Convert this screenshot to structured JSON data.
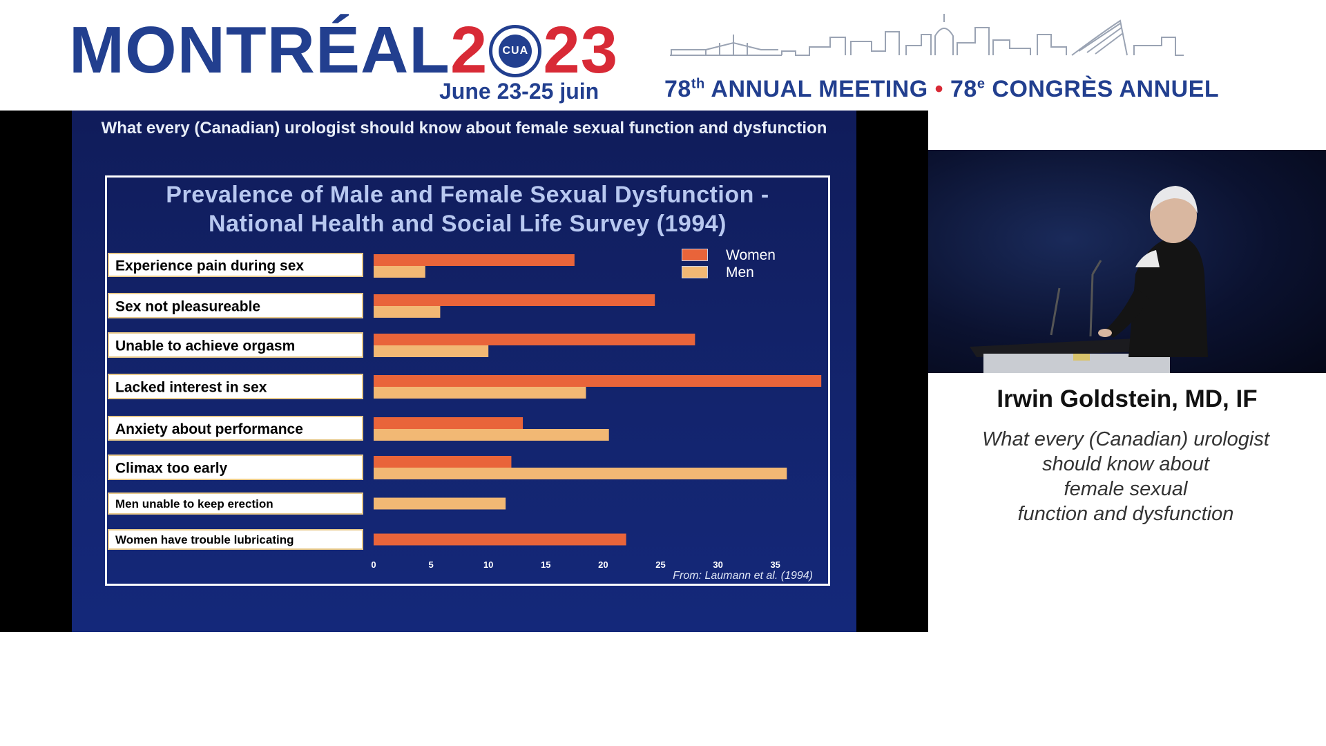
{
  "header": {
    "city": "MONTRÉAL",
    "year_left": "2",
    "seal_text": "CUA",
    "year_right": "23",
    "dates": "June 23-25 juin",
    "meeting_en": "ANNUAL MEETING",
    "meeting_num_en": "78",
    "meeting_sup_en": "th",
    "meeting_num_fr": "78",
    "meeting_sup_fr": "e",
    "meeting_fr": "CONGRÈS ANNUEL",
    "separator": "•"
  },
  "slide": {
    "topbar": "What every (Canadian) urologist should know about female sexual function and dysfunction"
  },
  "chart_data": {
    "type": "bar",
    "orientation": "horizontal",
    "title_line1": "Prevalence of Male and Female Sexual Dysfunction -",
    "title_line2": "National Health and Social Life Survey (1994)",
    "categories": [
      "Experience pain during sex",
      "Sex not pleasureable",
      "Unable to achieve orgasm",
      "Lacked interest in sex",
      "Anxiety about performance",
      "Climax too early",
      "Men unable to keep erection",
      "Women have trouble lubricating"
    ],
    "series": [
      {
        "name": "Women",
        "color": "#e9643a",
        "values": [
          17.5,
          24.5,
          28,
          39,
          13,
          12,
          null,
          22
        ]
      },
      {
        "name": "Men",
        "color": "#f2b874",
        "values": [
          4.5,
          5.8,
          10,
          18.5,
          20.5,
          36,
          11.5,
          null
        ]
      }
    ],
    "xticks": [
      0,
      5,
      10,
      15,
      20,
      25,
      30,
      35
    ],
    "xlim": [
      0,
      39
    ],
    "legend_position": "top-right",
    "source": "From: Laumann et al. (1994)"
  },
  "speaker": {
    "name": "Irwin Goldstein, MD, IF",
    "talk_lines": [
      "What every (Canadian) urologist",
      "should know about",
      "female sexual",
      "function and dysfunction"
    ]
  }
}
